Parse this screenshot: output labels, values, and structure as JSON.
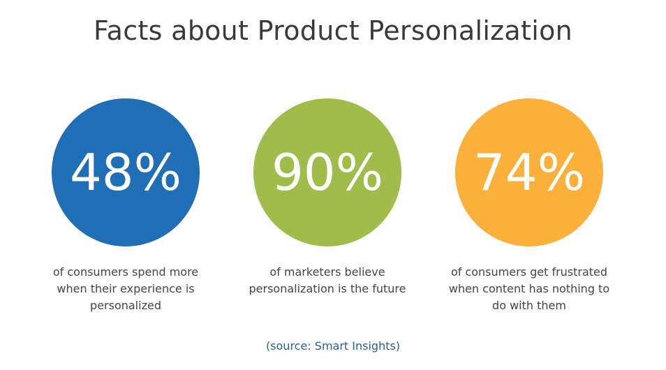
{
  "title": "Facts about Product Personalization",
  "facts": [
    {
      "value": "48%",
      "caption": "of consumers spend more when their experience is personalized",
      "color": "#1f6eb6"
    },
    {
      "value": "90%",
      "caption": "of marketers believe personalization is the future",
      "color": "#9fbd4a"
    },
    {
      "value": "74%",
      "caption": "of consumers get frustrated when content has nothing to do with them",
      "color": "#fbb03b"
    }
  ],
  "source": "(source: Smart Insights)"
}
